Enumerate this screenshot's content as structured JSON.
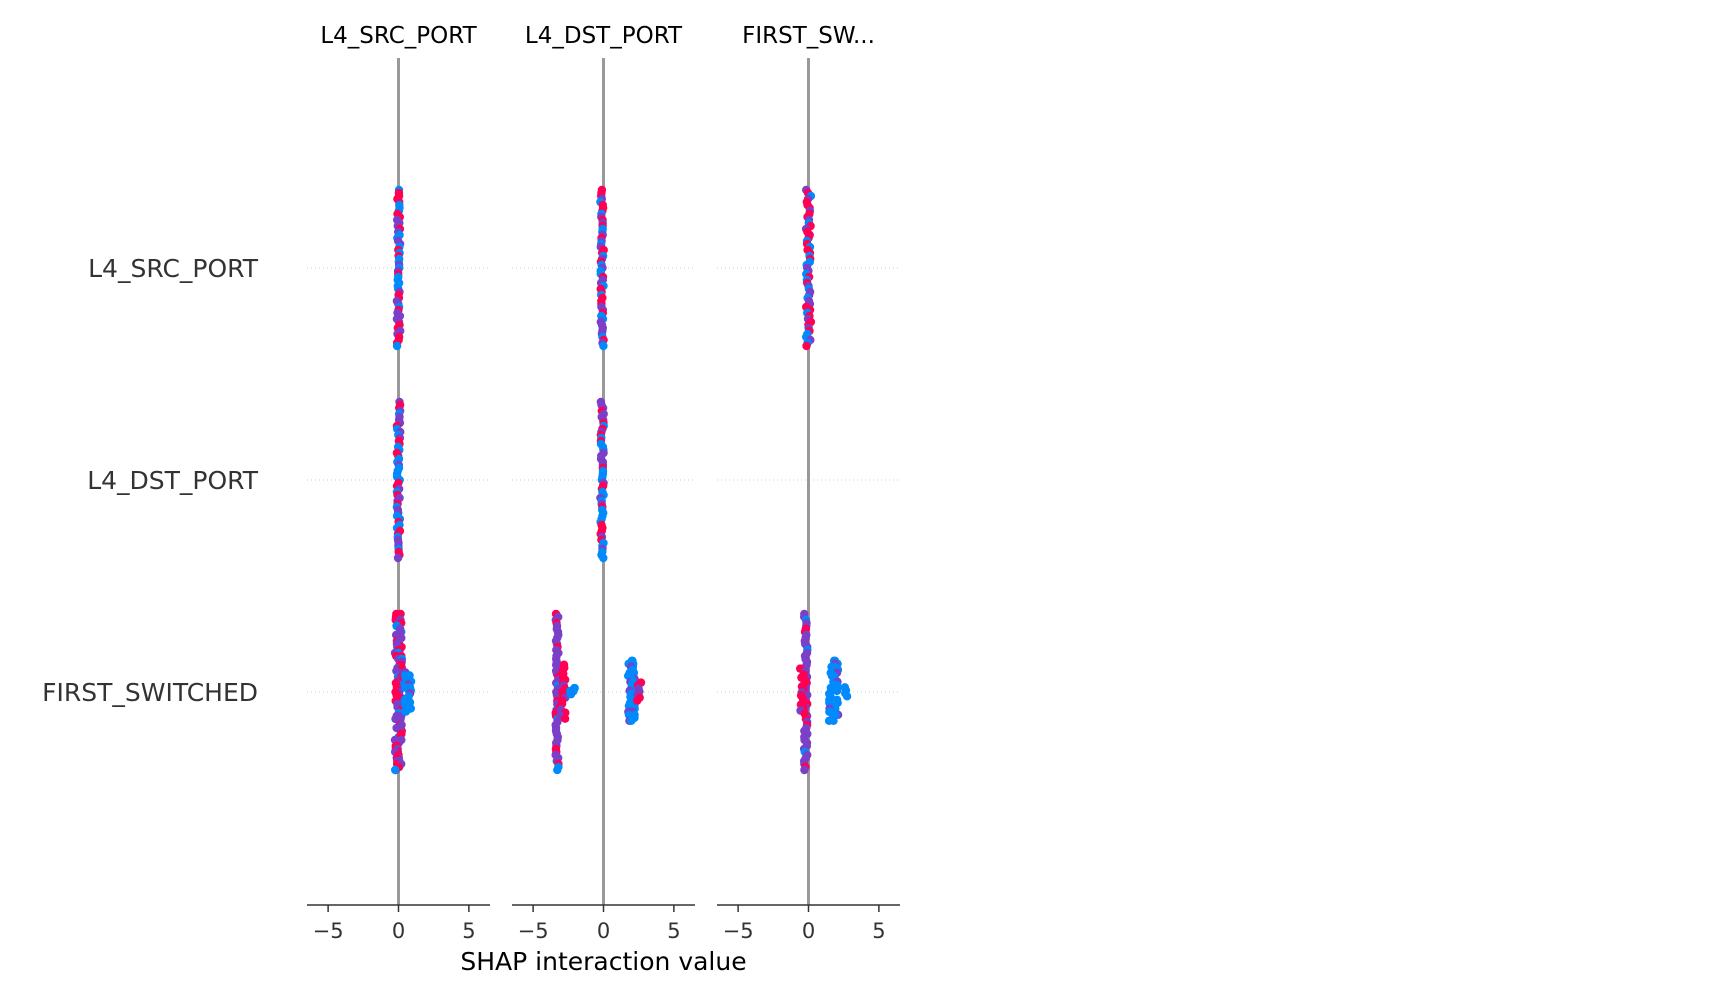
{
  "chart_data": {
    "type": "scatter",
    "subtype": "shap-interaction-beeswarm-grid",
    "xlabel": "SHAP interaction value",
    "xlim": [
      -6.5,
      6.5
    ],
    "xticks": [
      -5,
      0,
      5
    ],
    "xtick_labels": [
      "−5",
      "0",
      "5"
    ],
    "columns": [
      {
        "key": "L4_SRC_PORT",
        "title": "L4_SRC_PORT"
      },
      {
        "key": "L4_DST_PORT",
        "title": "L4_DST_PORT"
      },
      {
        "key": "FIRST_SWITCHED",
        "title": "FIRST_SW..."
      }
    ],
    "rows": [
      {
        "key": "L4_SRC_PORT",
        "label": "L4_SRC_PORT"
      },
      {
        "key": "L4_DST_PORT",
        "label": "L4_DST_PORT"
      },
      {
        "key": "FIRST_SWITCHED",
        "label": "FIRST_SWITCHED"
      }
    ],
    "color_scale": {
      "low": "#008afb",
      "mid": "#7b3fc8",
      "high": "#ff0052"
    },
    "zero_line_color": "#999999",
    "row_grid": true,
    "cells": [
      {
        "row": 0,
        "col": 0,
        "clusters": [
          {
            "x": 0.0,
            "spread": 0.12,
            "height": 1.0,
            "colors": "mixed"
          }
        ]
      },
      {
        "row": 0,
        "col": 1,
        "clusters": [
          {
            "x": -0.1,
            "spread": 0.12,
            "height": 1.0,
            "colors": "mixed"
          }
        ]
      },
      {
        "row": 0,
        "col": 2,
        "clusters": [
          {
            "x": 0.0,
            "spread": 0.18,
            "height": 1.0,
            "colors": "mixed"
          }
        ]
      },
      {
        "row": 1,
        "col": 0,
        "clusters": [
          {
            "x": 0.0,
            "spread": 0.12,
            "height": 1.0,
            "colors": "mixed"
          }
        ]
      },
      {
        "row": 1,
        "col": 1,
        "clusters": [
          {
            "x": -0.1,
            "spread": 0.12,
            "height": 1.0,
            "colors": "mixed"
          }
        ]
      },
      {
        "row": 1,
        "col": 2,
        "clusters": []
      },
      {
        "row": 2,
        "col": 0,
        "clusters": [
          {
            "x": 0.0,
            "spread": 0.25,
            "height": 1.0,
            "colors": "purple-red"
          },
          {
            "x": 0.7,
            "spread": 0.25,
            "height": 0.25,
            "colors": "blue"
          }
        ]
      },
      {
        "row": 2,
        "col": 1,
        "clusters": [
          {
            "x": -3.3,
            "spread": 0.1,
            "height": 1.0,
            "colors": "purple"
          },
          {
            "x": -2.9,
            "spread": 0.2,
            "height": 0.35,
            "colors": "red"
          },
          {
            "x": -2.1,
            "spread": 0.35,
            "height": 0.05,
            "colors": "blue"
          },
          {
            "x": 2.0,
            "spread": 0.25,
            "height": 0.4,
            "colors": "blue"
          },
          {
            "x": 2.6,
            "spread": 0.2,
            "height": 0.12,
            "colors": "red"
          }
        ]
      },
      {
        "row": 2,
        "col": 2,
        "clusters": [
          {
            "x": -0.2,
            "spread": 0.12,
            "height": 1.0,
            "colors": "purple"
          },
          {
            "x": -0.4,
            "spread": 0.2,
            "height": 0.3,
            "colors": "red"
          },
          {
            "x": 1.8,
            "spread": 0.35,
            "height": 0.4,
            "colors": "blue"
          },
          {
            "x": 2.7,
            "spread": 0.15,
            "height": 0.06,
            "colors": "blue"
          }
        ]
      }
    ]
  }
}
